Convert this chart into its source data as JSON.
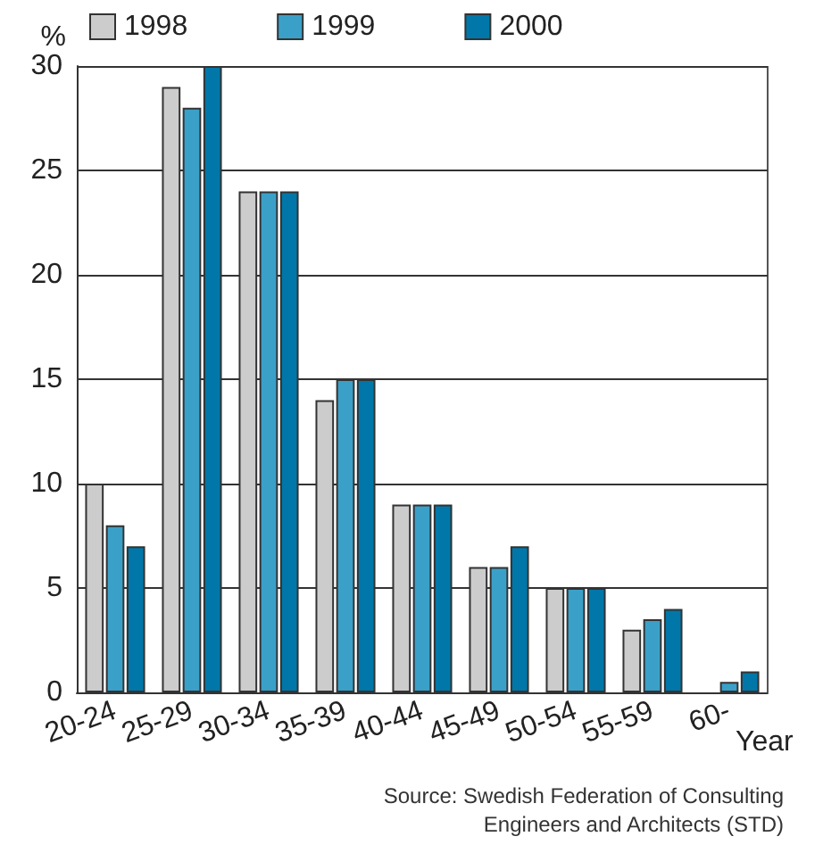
{
  "chart_data": {
    "type": "bar",
    "xlabel": "Year",
    "ylabel": "%",
    "categories": [
      "20-24",
      "25-29",
      "30-34",
      "35-39",
      "40-44",
      "45-49",
      "50-54",
      "55-59",
      "60-"
    ],
    "series": [
      {
        "name": "1998",
        "color": "#cccccc",
        "values": [
          10,
          29,
          24,
          14,
          9,
          6,
          5,
          3,
          0
        ]
      },
      {
        "name": "1999",
        "color": "#3ba0c8",
        "values": [
          8,
          28,
          24,
          15,
          9,
          6,
          5,
          3.5,
          0.5
        ]
      },
      {
        "name": "2000",
        "color": "#0077a8",
        "values": [
          7,
          30,
          24,
          15,
          9,
          7,
          5,
          4,
          1
        ]
      }
    ],
    "ylim": [
      0,
      30
    ],
    "yticks": [
      0,
      5,
      10,
      15,
      20,
      25,
      30
    ],
    "grid": "y",
    "legend": "top",
    "annotations": [
      "Source: Swedish Federation of Consulting\nEngineers and Architects (STD)"
    ]
  }
}
